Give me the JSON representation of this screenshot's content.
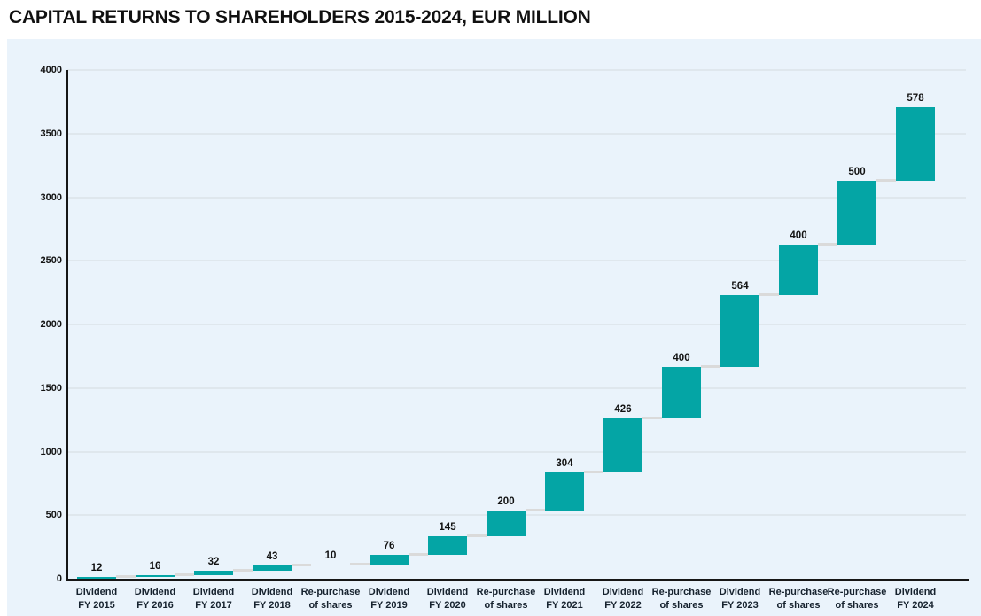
{
  "page": {
    "title": "CAPITAL RETURNS TO SHAREHOLDERS 2015-2024, EUR MILLION"
  },
  "chart_data": {
    "type": "waterfall",
    "title": "CAPITAL RETURNS TO SHAREHOLDERS 2015-2024, EUR MILLION",
    "unit": "EUR million",
    "categories": [
      [
        "Dividend",
        "FY 2015"
      ],
      [
        "Dividend",
        "FY 2016"
      ],
      [
        "Dividend",
        "FY 2017"
      ],
      [
        "Dividend",
        "FY 2018"
      ],
      [
        "Re-purchase",
        "of shares"
      ],
      [
        "Dividend",
        "FY 2019"
      ],
      [
        "Dividend",
        "FY 2020"
      ],
      [
        "Re-purchase",
        "of shares"
      ],
      [
        "Dividend",
        "FY 2021"
      ],
      [
        "Dividend",
        "FY 2022"
      ],
      [
        "Re-purchase",
        "of shares"
      ],
      [
        "Dividend",
        "FY 2023"
      ],
      [
        "Re-purchase",
        "of shares"
      ],
      [
        "Re-purchase",
        "of shares"
      ],
      [
        "Dividend",
        "FY 2024"
      ]
    ],
    "values": [
      12,
      16,
      32,
      43,
      10,
      76,
      145,
      200,
      304,
      426,
      400,
      564,
      400,
      500,
      578
    ],
    "value_labels": [
      "12",
      "16",
      "32",
      "43",
      "10",
      "76",
      "145",
      "200",
      "304",
      "426",
      "400",
      "564",
      "400",
      "500",
      "578"
    ],
    "y_axis": {
      "min": 0,
      "max": 4000,
      "tick_step": 500,
      "ticks": [
        0,
        500,
        1000,
        1500,
        2000,
        2500,
        3000,
        3500,
        4000
      ]
    },
    "grid": true,
    "legend": false,
    "colors": {
      "bar": "#04a5a5",
      "connector": "#dadada",
      "panel_background": "#eaf3fb",
      "gridline": "#dfe7ed",
      "axis": "#161616",
      "title": "#101010",
      "value_label": "#121212",
      "category_label": "#16222e",
      "tick_label": "#121212"
    }
  }
}
